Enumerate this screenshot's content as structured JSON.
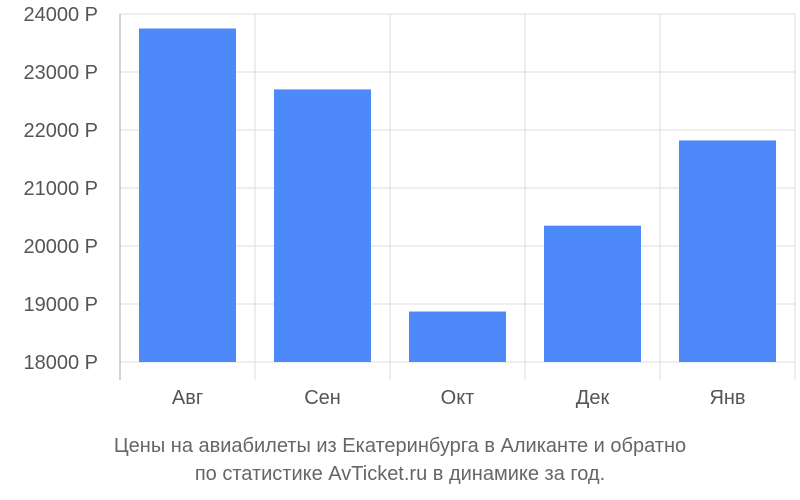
{
  "chart_data": {
    "type": "bar",
    "categories": [
      "Авг",
      "Сен",
      "Окт",
      "Дек",
      "Янв"
    ],
    "values": [
      23750,
      22700,
      18870,
      20350,
      21820
    ],
    "ylim": [
      18000,
      24000
    ],
    "yticks": [
      18000,
      19000,
      20000,
      21000,
      22000,
      23000,
      24000
    ],
    "ytick_labels": [
      "18000 Р",
      "19000 Р",
      "20000 Р",
      "21000 Р",
      "22000 Р",
      "23000 Р",
      "24000 Р"
    ],
    "grid": true,
    "bar_color": "#4d89f9",
    "caption_line1": "Цены на авиабилеты из Екатеринбурга в Аликанте и обратно",
    "caption_line2": "по статистике AvTicket.ru в динамике за год."
  }
}
